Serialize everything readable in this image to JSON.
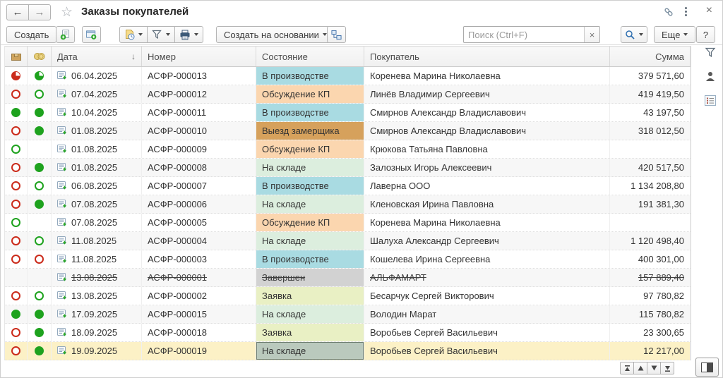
{
  "window": {
    "title": "Заказы покупателей"
  },
  "titlebar": {
    "back_icon": "←",
    "forward_icon": "→",
    "star_icon": "☆",
    "close_icon": "×"
  },
  "toolbar": {
    "create": "Создать",
    "create_based_on": "Создать на основании",
    "more": "Еще",
    "help": "?",
    "search_placeholder": "Поиск (Ctrl+F)",
    "search_value": "",
    "clear_icon": "×"
  },
  "table": {
    "columns": {
      "date": "Дата",
      "number": "Номер",
      "state": "Состояние",
      "customer": "Покупатель",
      "sum": "Сумма"
    },
    "sort_indicator": "↓",
    "rows": [
      {
        "ship": "pie-red",
        "pay": "pie-green",
        "date": "06.04.2025",
        "number": "АСФР-000013",
        "state": "В производстве",
        "state_color": "cyan",
        "customer": "Коренева Марина Николаевна",
        "sum": "379 571,60"
      },
      {
        "ship": "ring-red",
        "pay": "ring-green",
        "date": "07.04.2025",
        "number": "АСФР-000012",
        "state": "Обсуждение КП",
        "state_color": "peach",
        "customer": "Линёв Владимир Сергеевич",
        "sum": "419 419,50"
      },
      {
        "ship": "full-green",
        "pay": "full-green",
        "date": "10.04.2025",
        "number": "АСФР-000011",
        "state": "В производстве",
        "state_color": "cyan",
        "customer": "Смирнов Александр Владиславович",
        "sum": "43 197,50"
      },
      {
        "ship": "ring-red",
        "pay": "full-green",
        "date": "01.08.2025",
        "number": "АСФР-000010",
        "state": "Выезд замерщика",
        "state_color": "tan",
        "customer": "Смирнов Александр Владиславович",
        "sum": "318 012,50"
      },
      {
        "ship": "ring-green",
        "pay": "none",
        "date": "01.08.2025",
        "number": "АСФР-000009",
        "state": "Обсуждение КП",
        "state_color": "peach",
        "customer": "Крюкова Татьяна Павловна",
        "sum": ""
      },
      {
        "ship": "ring-red",
        "pay": "full-green",
        "date": "01.08.2025",
        "number": "АСФР-000008",
        "state": "На складе",
        "state_color": "mint",
        "customer": "Залозных Игорь Алексеевич",
        "sum": "420 517,50"
      },
      {
        "ship": "ring-red",
        "pay": "ring-green",
        "date": "06.08.2025",
        "number": "АСФР-000007",
        "state": "В производстве",
        "state_color": "cyan",
        "customer": "Лаверна ООО",
        "sum": "1 134 208,80"
      },
      {
        "ship": "ring-red",
        "pay": "full-green",
        "date": "07.08.2025",
        "number": "АСФР-000006",
        "state": "На складе",
        "state_color": "mint",
        "customer": "Кленовская Ирина Павловна",
        "sum": "191 381,30"
      },
      {
        "ship": "ring-green",
        "pay": "none",
        "date": "07.08.2025",
        "number": "АСФР-000005",
        "state": "Обсуждение КП",
        "state_color": "peach",
        "customer": "Коренева Марина Николаевна",
        "sum": ""
      },
      {
        "ship": "ring-red",
        "pay": "ring-green",
        "date": "11.08.2025",
        "number": "АСФР-000004",
        "state": "На складе",
        "state_color": "mint",
        "customer": "Шалуха Александр Сергеевич",
        "sum": "1 120 498,40"
      },
      {
        "ship": "ring-red",
        "pay": "ring-red",
        "date": "11.08.2025",
        "number": "АСФР-000003",
        "state": "В производстве",
        "state_color": "cyan",
        "customer": "Кошелева Ирина Сергеевна",
        "sum": "400 301,00"
      },
      {
        "ship": "none",
        "pay": "none",
        "date": "13.08.2025",
        "number": "АСФР-000001",
        "state": "Завершен",
        "state_color": "gray",
        "customer": "АЛЬФАМАРТ",
        "sum": "157 889,40",
        "deleted": true
      },
      {
        "ship": "ring-red",
        "pay": "ring-green",
        "date": "13.08.2025",
        "number": "АСФР-000002",
        "state": "Заявка",
        "state_color": "lime",
        "customer": "Бесарчук Сергей Викторович",
        "sum": "97 780,82"
      },
      {
        "ship": "full-green",
        "pay": "full-green",
        "date": "17.09.2025",
        "number": "АСФР-000015",
        "state": "На складе",
        "state_color": "mint",
        "customer": "Володин Марат",
        "sum": "115 780,82"
      },
      {
        "ship": "ring-red",
        "pay": "full-green",
        "date": "18.09.2025",
        "number": "АСФР-000018",
        "state": "Заявка",
        "state_color": "lime",
        "customer": "Воробьев Сергей Васильевич",
        "sum": "23 300,65"
      },
      {
        "ship": "ring-red",
        "pay": "full-green",
        "date": "19.09.2025",
        "number": "АСФР-000019",
        "state": "На складе",
        "state_color": "mint",
        "customer": "Воробьев Сергей Васильевич",
        "sum": "12 217,00",
        "selected": true,
        "current_cell": "state"
      }
    ]
  },
  "colors": {
    "cyan": "#a9dbe2",
    "peach": "#fbd6af",
    "tan": "#d6a15c",
    "mint": "#dceede",
    "lime": "#e9f0c4",
    "gray": "#d2d2d2",
    "selected_row": "#fcf1c6",
    "current_cell": "#bac9bd"
  }
}
